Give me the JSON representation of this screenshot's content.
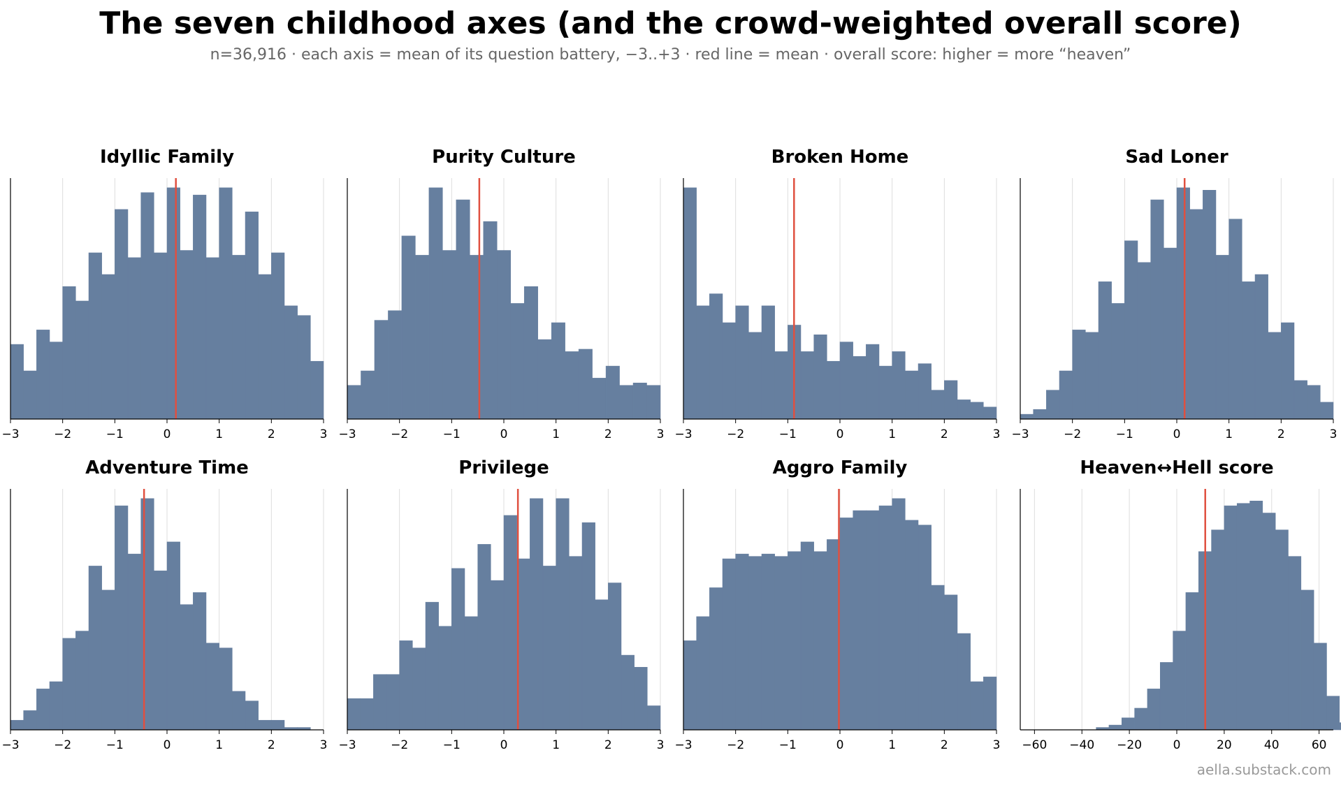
{
  "header": {
    "title": "The seven childhood axes (and the crowd-weighted overall score)",
    "subtitle": "n=36,916 · each axis = mean of its question battery, −3..+3 · red line = mean · overall score: higher = more “heaven”"
  },
  "footer": {
    "watermark": "aella.substack.com"
  },
  "colors": {
    "bar": "#667f9f",
    "mean_line": "#e05040",
    "grid": "#dddddd",
    "axis": "#000000"
  },
  "chart_data": [
    {
      "type": "bar",
      "title": "Idyllic Family",
      "bin_range": [
        -3,
        3
      ],
      "xticks": [
        -3,
        -2,
        -1,
        0,
        1,
        2,
        3
      ],
      "values": [
        0.31,
        0.2,
        0.37,
        0.32,
        0.55,
        0.49,
        0.69,
        0.6,
        0.87,
        0.67,
        0.94,
        0.69,
        0.96,
        0.7,
        0.93,
        0.67,
        0.96,
        0.68,
        0.86,
        0.6,
        0.69,
        0.47,
        0.43,
        0.24
      ],
      "mean": 0.17
    },
    {
      "type": "bar",
      "title": "Purity Culture",
      "bin_range": [
        -3,
        3
      ],
      "xticks": [
        -3,
        -2,
        -1,
        0,
        1,
        2,
        3
      ],
      "values": [
        0.14,
        0.2,
        0.41,
        0.45,
        0.76,
        0.68,
        0.96,
        0.7,
        0.91,
        0.68,
        0.82,
        0.7,
        0.48,
        0.55,
        0.33,
        0.4,
        0.28,
        0.29,
        0.17,
        0.22,
        0.14,
        0.15,
        0.14
      ],
      "mean": -0.47
    },
    {
      "type": "bar",
      "title": "Broken Home",
      "bin_range": [
        -3,
        3
      ],
      "xticks": [
        -3,
        -2,
        -1,
        0,
        1,
        2,
        3
      ],
      "values": [
        0.96,
        0.47,
        0.52,
        0.4,
        0.47,
        0.36,
        0.47,
        0.28,
        0.39,
        0.28,
        0.35,
        0.24,
        0.32,
        0.26,
        0.31,
        0.22,
        0.28,
        0.2,
        0.23,
        0.12,
        0.16,
        0.08,
        0.07,
        0.05
      ],
      "mean": -0.88
    },
    {
      "type": "bar",
      "title": "Sad Loner",
      "bin_range": [
        -3,
        3
      ],
      "xticks": [
        -3,
        -2,
        -1,
        0,
        1,
        2,
        3
      ],
      "values": [
        0.02,
        0.04,
        0.12,
        0.2,
        0.37,
        0.36,
        0.57,
        0.48,
        0.74,
        0.65,
        0.91,
        0.71,
        0.96,
        0.87,
        0.95,
        0.68,
        0.83,
        0.57,
        0.6,
        0.36,
        0.4,
        0.16,
        0.14,
        0.07
      ],
      "mean": 0.15
    },
    {
      "type": "bar",
      "title": "Adventure Time",
      "bin_range": [
        -3,
        3
      ],
      "xticks": [
        -3,
        -2,
        -1,
        0,
        1,
        2,
        3
      ],
      "values": [
        0.04,
        0.08,
        0.17,
        0.2,
        0.38,
        0.41,
        0.68,
        0.58,
        0.93,
        0.73,
        0.96,
        0.66,
        0.78,
        0.52,
        0.57,
        0.36,
        0.34,
        0.16,
        0.12,
        0.04,
        0.04,
        0.01,
        0.01,
        0.0
      ],
      "mean": -0.44
    },
    {
      "type": "bar",
      "title": "Privilege",
      "bin_range": [
        -3,
        3
      ],
      "xticks": [
        -3,
        -2,
        -1,
        0,
        1,
        2,
        3
      ],
      "values": [
        0.13,
        0.13,
        0.23,
        0.23,
        0.37,
        0.34,
        0.53,
        0.43,
        0.67,
        0.47,
        0.77,
        0.62,
        0.89,
        0.71,
        0.96,
        0.68,
        0.96,
        0.72,
        0.86,
        0.54,
        0.61,
        0.31,
        0.26,
        0.1
      ],
      "mean": 0.27
    },
    {
      "type": "bar",
      "title": "Aggro Family",
      "bin_range": [
        -3,
        3
      ],
      "xticks": [
        -3,
        -2,
        -1,
        0,
        1,
        2,
        3
      ],
      "values": [
        0.37,
        0.47,
        0.59,
        0.71,
        0.73,
        0.72,
        0.73,
        0.72,
        0.74,
        0.78,
        0.74,
        0.79,
        0.88,
        0.91,
        0.91,
        0.93,
        0.96,
        0.87,
        0.85,
        0.6,
        0.56,
        0.4,
        0.2,
        0.22
      ],
      "mean": -0.02
    },
    {
      "type": "bar",
      "title": "Heaven↔Hell score",
      "bin_range": [
        -66,
        66
      ],
      "bin_start": -61,
      "bin_width": 5.4,
      "xticks": [
        -60,
        -40,
        -20,
        0,
        20,
        40,
        60
      ],
      "values": [
        0.0,
        0.0,
        0.0,
        0.0,
        0.0,
        0.01,
        0.02,
        0.05,
        0.09,
        0.17,
        0.28,
        0.41,
        0.57,
        0.74,
        0.83,
        0.93,
        0.94,
        0.95,
        0.9,
        0.83,
        0.72,
        0.58,
        0.36,
        0.14,
        0.03
      ],
      "mean": 12
    }
  ]
}
